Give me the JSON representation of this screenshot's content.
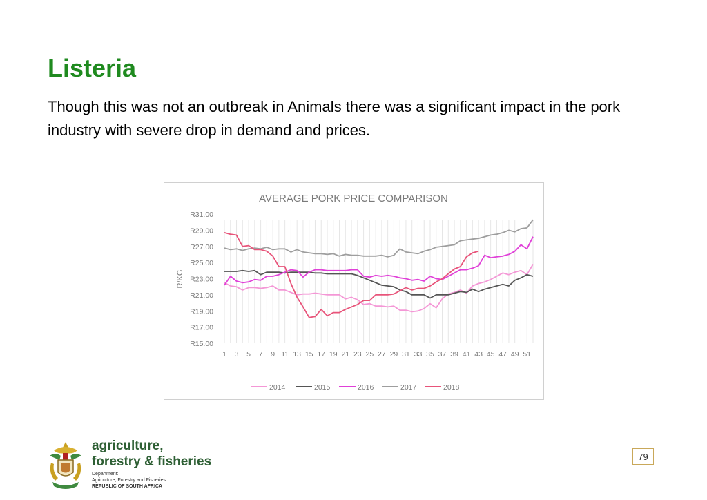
{
  "slide": {
    "title": "Listeria",
    "body": "Though this was not an outbreak in Animals there was a significant impact in the pork industry with severe drop in demand and prices.",
    "page_number": "79"
  },
  "footer": {
    "org_line1": "agriculture,",
    "org_line2": "forestry & fisheries",
    "dept_line1": "Department:",
    "dept_line2": "Agriculture, Forestry and Fisheries",
    "dept_line3": "REPUBLIC OF SOUTH AFRICA"
  },
  "chart_data": {
    "type": "line",
    "title": "AVERAGE PORK PRICE COMPARISON",
    "ylabel": "R/KG",
    "xlabel": "",
    "ylim": [
      15,
      31
    ],
    "y_ticks": [
      "R15.00",
      "R17.00",
      "R19.00",
      "R21.00",
      "R23.00",
      "R25.00",
      "R27.00",
      "R29.00",
      "R31.00"
    ],
    "x_ticks": [
      "1",
      "3",
      "5",
      "7",
      "9",
      "11",
      "13",
      "15",
      "17",
      "19",
      "21",
      "23",
      "25",
      "27",
      "29",
      "31",
      "33",
      "35",
      "37",
      "39",
      "41",
      "43",
      "45",
      "47",
      "49",
      "51"
    ],
    "grid": "vertical",
    "legend_position": "bottom",
    "series": [
      {
        "name": "2014",
        "color": "#f497d6",
        "values": [
          22.5,
          22.1,
          22.0,
          21.6,
          21.9,
          21.9,
          21.8,
          21.9,
          22.1,
          21.6,
          21.6,
          21.3,
          21.0,
          21.1,
          21.1,
          21.2,
          21.1,
          21.0,
          21.0,
          21.0,
          20.5,
          20.7,
          20.4,
          19.8,
          19.9,
          19.6,
          19.6,
          19.5,
          19.6,
          19.1,
          19.1,
          18.9,
          19.0,
          19.3,
          19.9,
          19.4,
          20.5,
          21.1,
          21.3,
          21.6,
          21.2,
          22.1,
          22.4,
          22.6,
          22.9,
          23.3,
          23.7,
          23.5,
          23.8,
          24.0,
          23.5,
          24.8
        ]
      },
      {
        "name": "2015",
        "color": "#555555",
        "values": [
          23.9,
          23.9,
          23.9,
          24.0,
          23.9,
          24.0,
          23.5,
          23.8,
          23.8,
          23.8,
          23.7,
          23.8,
          23.8,
          23.8,
          23.8,
          23.7,
          23.7,
          23.6,
          23.6,
          23.6,
          23.6,
          23.6,
          23.4,
          23.1,
          22.8,
          22.5,
          22.2,
          22.1,
          22.0,
          21.6,
          21.4,
          21.0,
          21.0,
          21.0,
          20.6,
          21.0,
          21.0,
          21.0,
          21.2,
          21.4,
          21.3,
          21.7,
          21.4,
          21.7,
          21.9,
          22.1,
          22.3,
          22.1,
          22.8,
          23.1,
          23.5,
          23.3
        ]
      },
      {
        "name": "2016",
        "color": "#e040d8",
        "values": [
          22.2,
          23.3,
          22.7,
          22.5,
          22.6,
          22.9,
          22.8,
          23.3,
          23.3,
          23.5,
          23.8,
          24.1,
          24.0,
          23.2,
          23.8,
          24.1,
          24.1,
          24.0,
          24.0,
          24.0,
          24.0,
          24.1,
          24.1,
          23.3,
          23.2,
          23.4,
          23.3,
          23.4,
          23.3,
          23.1,
          23.0,
          22.8,
          22.9,
          22.7,
          23.3,
          23.0,
          22.9,
          23.3,
          23.7,
          24.1,
          24.1,
          24.3,
          24.6,
          25.9,
          25.6,
          25.7,
          25.8,
          26.0,
          26.4,
          27.2,
          26.7,
          28.2
        ]
      },
      {
        "name": "2017",
        "color": "#9e9e9e",
        "values": [
          26.8,
          26.6,
          26.7,
          26.5,
          26.7,
          26.8,
          26.7,
          26.9,
          26.6,
          26.7,
          26.7,
          26.3,
          26.6,
          26.3,
          26.2,
          26.1,
          26.1,
          26.0,
          26.1,
          25.8,
          26.0,
          25.9,
          25.9,
          25.8,
          25.8,
          25.8,
          25.9,
          25.7,
          25.9,
          26.7,
          26.3,
          26.2,
          26.1,
          26.4,
          26.6,
          26.9,
          27.0,
          27.1,
          27.2,
          27.7,
          27.8,
          27.9,
          28.0,
          28.2,
          28.4,
          28.5,
          28.7,
          29.0,
          28.8,
          29.2,
          29.3,
          30.3
        ]
      },
      {
        "name": "2018",
        "color": "#e8547a",
        "values": [
          28.7,
          28.5,
          28.4,
          27.0,
          27.1,
          26.6,
          26.6,
          26.4,
          25.8,
          24.5,
          24.5,
          22.4,
          20.7,
          19.5,
          18.2,
          18.3,
          19.2,
          18.4,
          18.8,
          18.8,
          19.2,
          19.5,
          19.8,
          20.3,
          20.3,
          21.0,
          21.0,
          21.0,
          21.1,
          21.5,
          21.9,
          21.6,
          21.8,
          21.8,
          22.1,
          22.6,
          23.0,
          23.6,
          24.2,
          24.5,
          25.7,
          26.2,
          26.4
        ]
      }
    ]
  }
}
